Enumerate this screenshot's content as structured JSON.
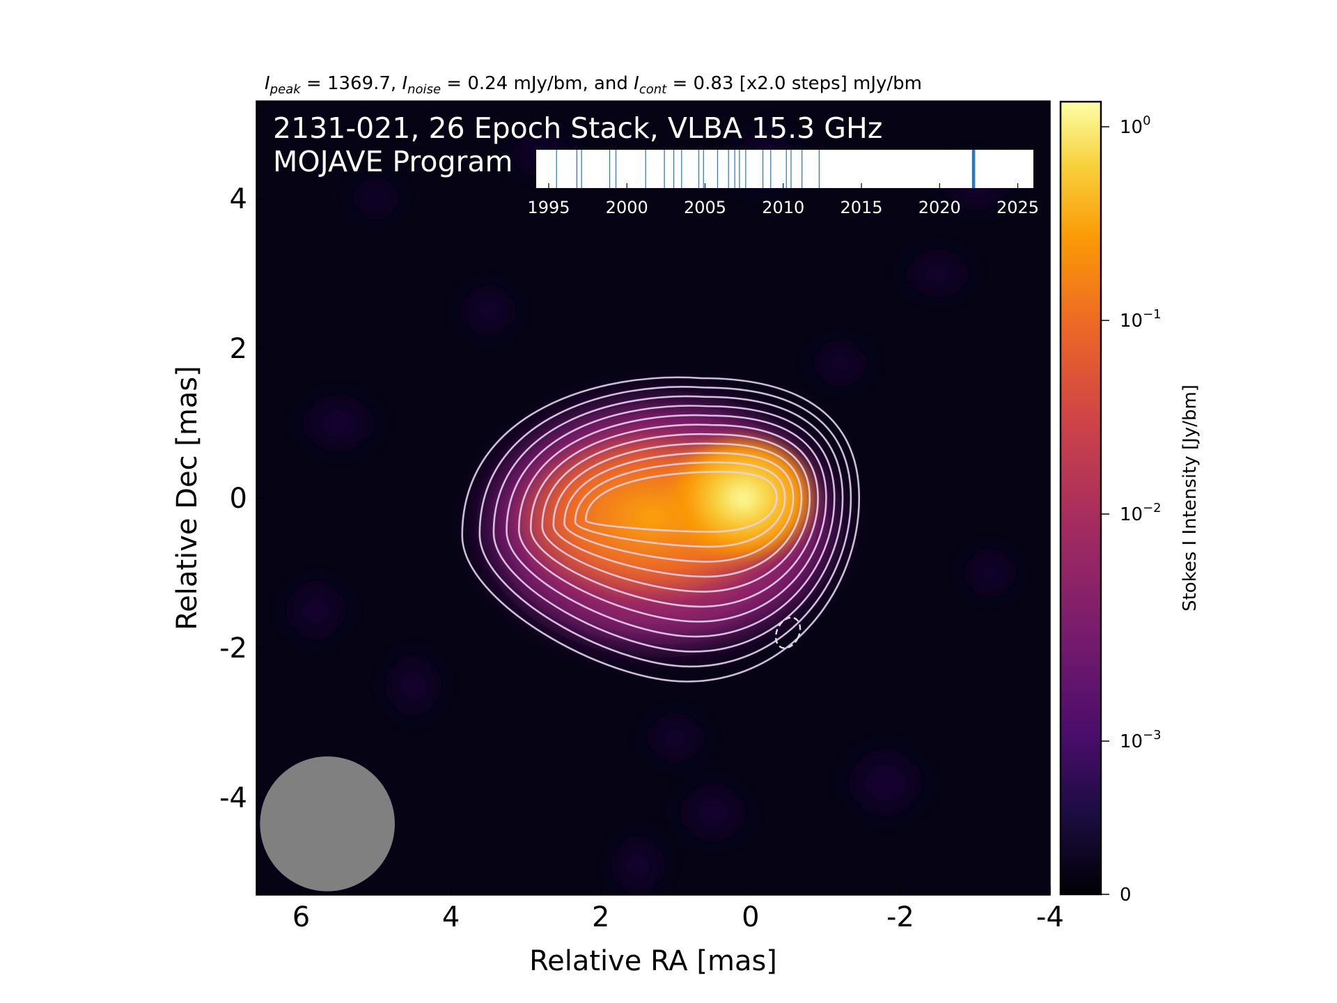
{
  "chart_data": {
    "type": "heatmap",
    "header": {
      "peak_symbol": "I",
      "peak_sub": "peak",
      "peak_text": " = 1369.7, ",
      "noise_symbol": "I",
      "noise_sub": "noise",
      "noise_text": " = 0.24 mJy/bm, and ",
      "cont_symbol": "I",
      "cont_sub": "cont",
      "cont_text": " = 0.83 [x2.0 steps] mJy/bm"
    },
    "title_line1": "2131-021, 26 Epoch Stack, VLBA 15.3 GHz",
    "title_line2": "MOJAVE Program",
    "xlabel": "Relative RA [mas]",
    "ylabel": "Relative Dec [mas]",
    "xlim": [
      6.6,
      -4.0
    ],
    "ylim": [
      -5.3,
      5.3
    ],
    "xticks": [
      6,
      4,
      2,
      0,
      -2,
      -4
    ],
    "xtick_labels": [
      "6",
      "4",
      "2",
      "0",
      "-2",
      "-4"
    ],
    "yticks": [
      4,
      2,
      0,
      -2,
      -4
    ],
    "ytick_labels": [
      "4",
      "2",
      "0",
      "-2",
      "-4"
    ],
    "core_position": [
      0.1,
      0.0
    ],
    "jet_extension_toward": [
      2.5,
      -0.5
    ],
    "beam": {
      "center": [
        5.65,
        -4.35
      ],
      "major_mas": 0.9,
      "minor_mas": 0.9,
      "color": "#808080"
    },
    "n_contours": 11,
    "contour_color": "#e6d0f0",
    "negative_contour_center": [
      -0.5,
      -1.8
    ],
    "colorbar": {
      "label": "Stokes I Intensity [Jy/bm]",
      "scale": "log",
      "ticks": [
        {
          "base": "10",
          "exp": "0"
        },
        {
          "base": "10",
          "exp": "−1"
        },
        {
          "base": "10",
          "exp": "−2"
        },
        {
          "base": "10",
          "exp": "−3"
        },
        {
          "base": "0",
          "exp": ""
        }
      ],
      "colormap": "inferno"
    },
    "epoch_timeline": {
      "xlim": [
        1994.2,
        2026.0
      ],
      "ticks": [
        1995,
        2000,
        2005,
        2010,
        2015,
        2020,
        2025
      ],
      "tick_labels": [
        "1995",
        "2000",
        "2005",
        "2010",
        "2015",
        "2020",
        "2025"
      ],
      "epochs": [
        1995.5,
        1996.8,
        1997.1,
        1998.9,
        1999.3,
        2001.2,
        2002.4,
        2003.0,
        2003.5,
        2004.6,
        2004.9,
        2005.8,
        2006.5,
        2006.9,
        2007.2,
        2007.6,
        2008.7,
        2009.2,
        2010.2,
        2010.5,
        2011.2,
        2012.3,
        2022.1,
        2022.15,
        2022.2,
        2022.25
      ],
      "line_color": "#1f77b4"
    }
  }
}
